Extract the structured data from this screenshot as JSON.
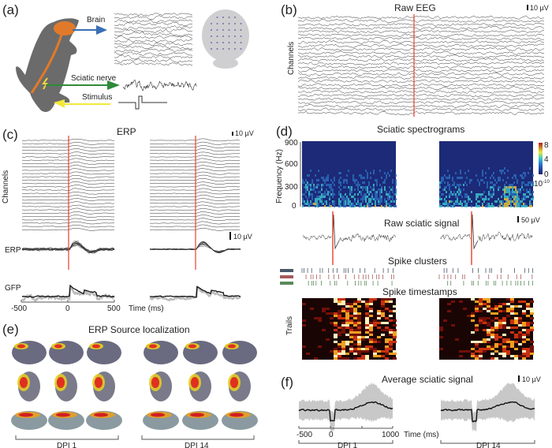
{
  "panels": {
    "a": {
      "label": "(a)",
      "brain": "Brain",
      "sciatic": "Sciatic nerve",
      "stimulus": "Stimulus"
    },
    "b": {
      "label": "(b)",
      "title": "Raw EEG",
      "scale": "10 µV",
      "ylabel": "Channels"
    },
    "c": {
      "label": "(c)",
      "title": "ERP",
      "scale_top": "10 µV",
      "scale_erp": "10 µV",
      "ylabel": "Channels",
      "row_erp": "ERP",
      "row_gfp": "GFP",
      "xticks": [
        "-500",
        "0",
        "500"
      ],
      "xlabel": "Time (ms)"
    },
    "d": {
      "label": "(d)",
      "title_spec": "Sciatic spectrograms",
      "ylabel": "Frequency (Hz)",
      "yticks": [
        "900",
        "600",
        "300",
        "0"
      ],
      "colorbar_ticks": [
        "8",
        "4",
        "0"
      ],
      "colorbar_unit": "10",
      "colorbar_exp": "-10",
      "title_raw": "Raw sciatic signal",
      "scale_raw": "50 µV",
      "title_clusters": "Spike clusters",
      "cluster_colors": [
        "#4a5868",
        "#a85a5a",
        "#5a8a5a"
      ],
      "title_timestamps": "Spike timestamps",
      "heatmap_ylabel": "Trails"
    },
    "e": {
      "label": "(e)",
      "title": "ERP Source localization",
      "groups": [
        "DPI 1",
        "DPI 14"
      ]
    },
    "f": {
      "label": "(f)",
      "title": "Average sciatic signal",
      "scale": "10 µV",
      "xticks": [
        "-500",
        "0",
        "1000"
      ],
      "xlabel": "Time (ms)",
      "groups": [
        "DPI 1",
        "DPI 14"
      ]
    }
  },
  "colors": {
    "stimulus_line": "#e8402a",
    "brain_arrow": "#3a6fb5",
    "sciatic_arrow": "#2e8b3a",
    "stimulus_arrow": "#f2e93a",
    "rat": "#6b6b6b",
    "nerve": "#e07a2a"
  },
  "chart_data": [
    {
      "type": "line",
      "title": "Raw EEG",
      "ylabel": "Channels",
      "scale_bar": "10 µV"
    },
    {
      "type": "line",
      "title": "ERP",
      "ylabel": "Channels",
      "xlabel": "Time (ms)",
      "xlim": [
        -500,
        500
      ],
      "xticks": [
        -500,
        0,
        500
      ],
      "rows": [
        "ERP",
        "GFP"
      ],
      "conditions": [
        "DPI 1",
        "DPI 14"
      ]
    },
    {
      "type": "heatmap",
      "title": "Sciatic spectrograms",
      "ylabel": "Frequency (Hz)",
      "ylim": [
        0,
        900
      ],
      "yticks": [
        0,
        300,
        600,
        900
      ],
      "colorbar_range": [
        0,
        8
      ],
      "colorbar_unit": "10^-10"
    },
    {
      "type": "line",
      "title": "Raw sciatic signal",
      "scale_bar": "50 µV"
    },
    {
      "type": "scatter",
      "title": "Spike clusters",
      "series_count": 3
    },
    {
      "type": "heatmap",
      "title": "Spike timestamps",
      "ylabel": "Trails"
    },
    {
      "type": "line",
      "title": "Average sciatic signal",
      "xlabel": "Time (ms)",
      "xlim": [
        -500,
        1000
      ],
      "xticks": [
        -500,
        0,
        1000
      ],
      "scale_bar": "10 µV",
      "conditions": [
        "DPI 1",
        "DPI 14"
      ]
    }
  ]
}
